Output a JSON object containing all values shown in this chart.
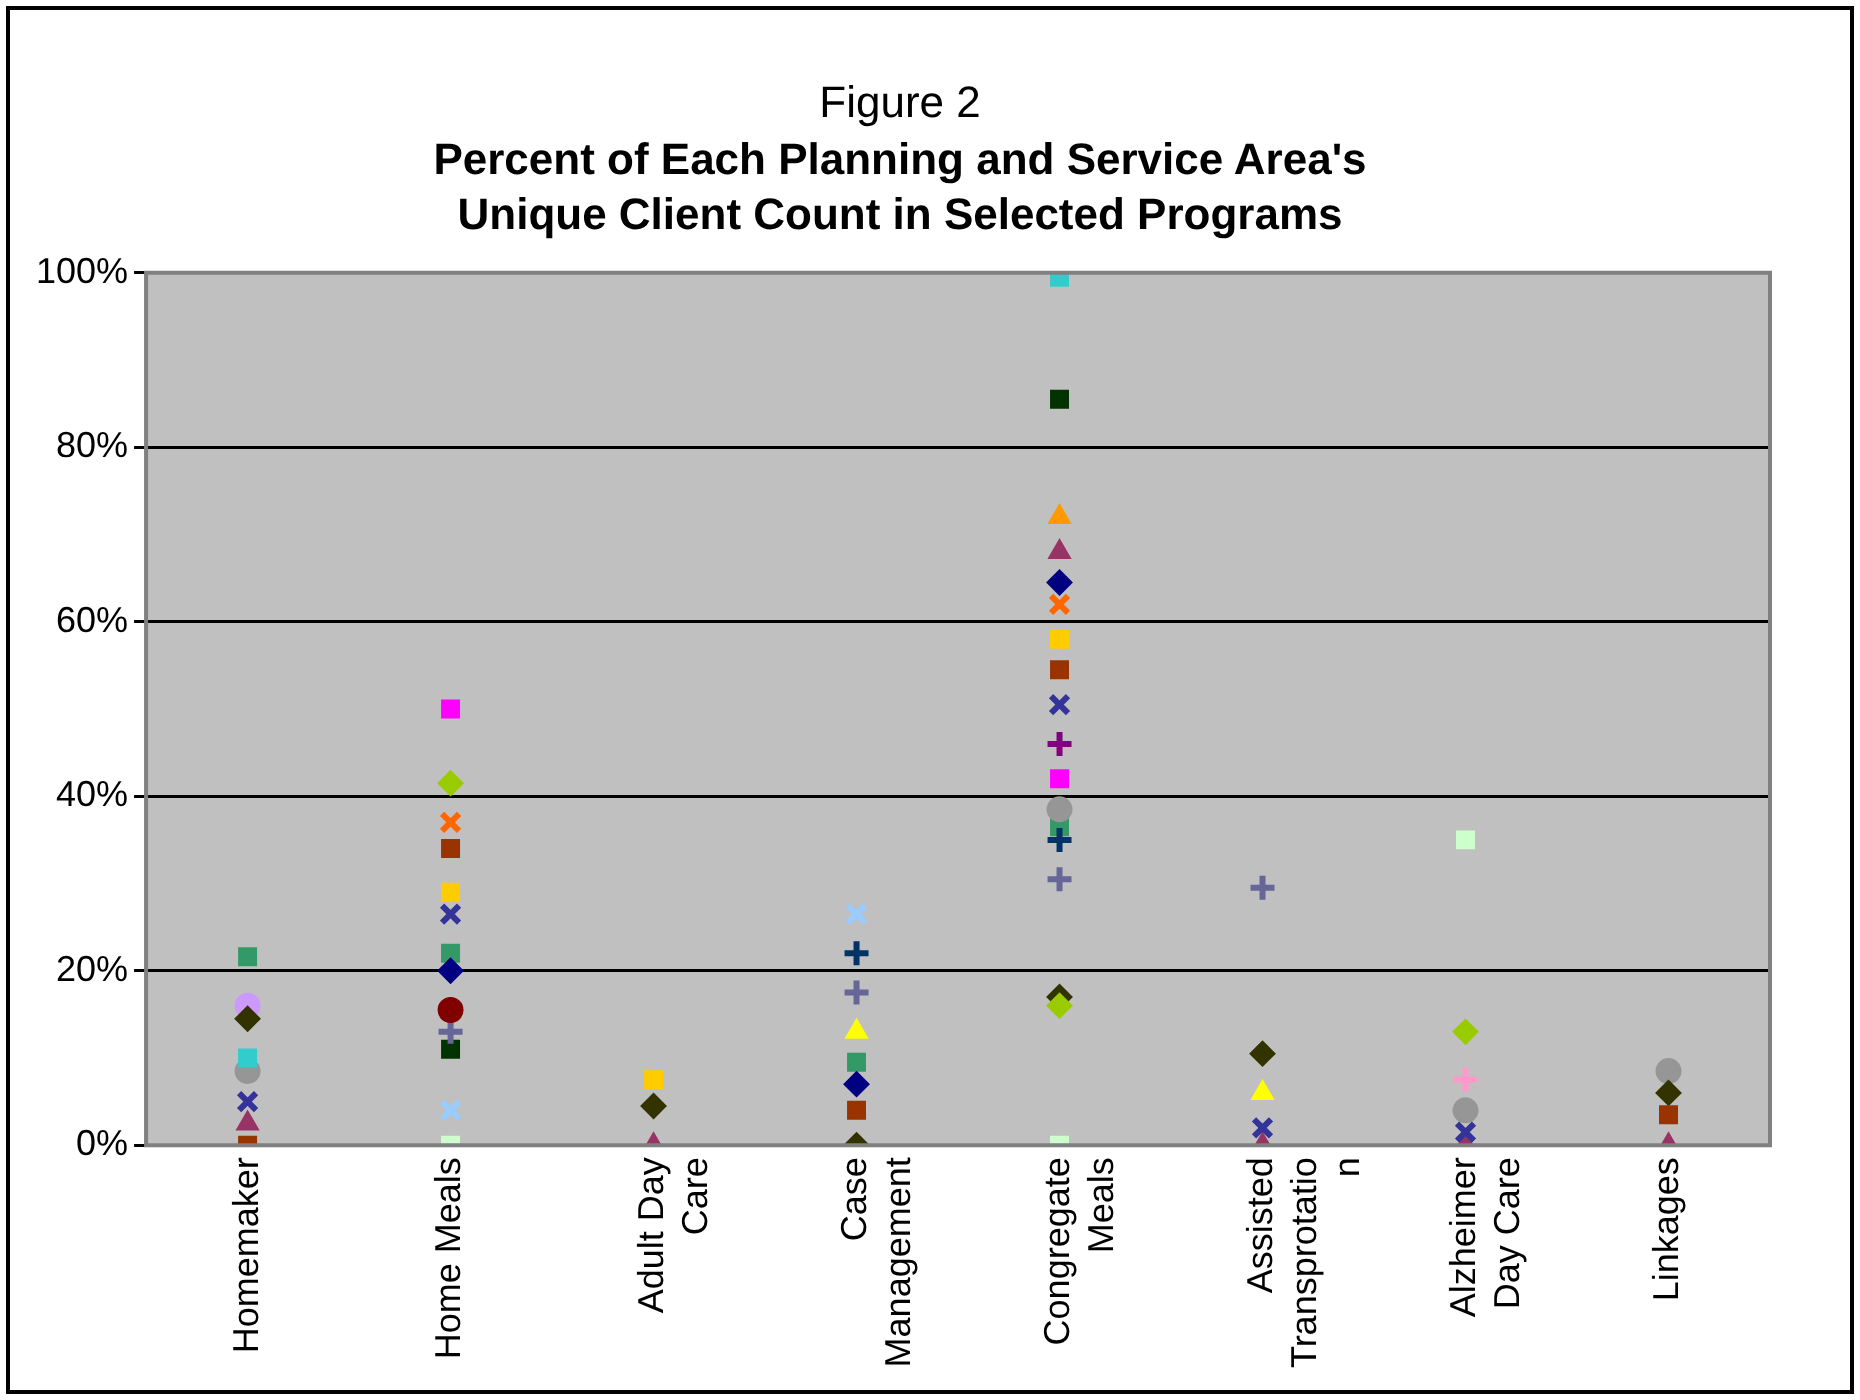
{
  "chart_data": {
    "type": "scatter",
    "title": "Figure 2",
    "subtitle": "Percent of Each Planning and Service Area's Unique Client Count in Selected Programs",
    "categories": [
      "Homemaker",
      "Home Meals",
      "Adult Day Care",
      "Case Management",
      "Congregate Meals",
      "Assisted Transprotation",
      "Alzheimer Day Care",
      "Linkages"
    ],
    "ylim": [
      0,
      100
    ],
    "yticks": [
      {
        "value": 0,
        "label": "0%"
      },
      {
        "value": 20,
        "label": "20%"
      },
      {
        "value": 40,
        "label": "40%"
      },
      {
        "value": 60,
        "label": "60%"
      },
      {
        "value": 80,
        "label": "80%"
      },
      {
        "value": 100,
        "label": "100%"
      }
    ],
    "grid": "y",
    "legend": false,
    "series": [
      {
        "color": "#000080",
        "marker": "diamond",
        "values": [
          null,
          20,
          null,
          7,
          64.5,
          null,
          null,
          null
        ]
      },
      {
        "color": "#ff00ff",
        "marker": "square",
        "values": [
          null,
          50,
          null,
          null,
          42,
          null,
          null,
          null
        ]
      },
      {
        "color": "#ffff00",
        "marker": "triangle",
        "values": [
          null,
          null,
          null,
          13,
          null,
          6,
          null,
          null
        ]
      },
      {
        "color": "#33cccc",
        "marker": "square",
        "values": [
          10,
          null,
          null,
          null,
          99.5,
          null,
          null,
          null
        ]
      },
      {
        "color": "#800080",
        "marker": "cross",
        "values": [
          null,
          null,
          null,
          null,
          46,
          null,
          null,
          null
        ]
      },
      {
        "color": "#800000",
        "marker": "circle",
        "values": [
          null,
          15.5,
          null,
          null,
          null,
          null,
          null,
          null
        ]
      },
      {
        "color": "#333399",
        "marker": "x",
        "values": [
          5,
          26.5,
          null,
          null,
          50.5,
          2,
          1.5,
          null
        ]
      },
      {
        "color": "#ff6600",
        "marker": "x",
        "values": [
          null,
          37,
          null,
          null,
          62,
          null,
          null,
          null
        ]
      },
      {
        "color": "#993300",
        "marker": "square",
        "values": [
          0,
          34,
          null,
          4,
          54.5,
          null,
          null,
          3.5
        ]
      },
      {
        "color": "#ffcc00",
        "marker": "square",
        "values": [
          null,
          29,
          7.5,
          null,
          58,
          null,
          null,
          null
        ]
      },
      {
        "color": "#993366",
        "marker": "triangle",
        "values": [
          2.5,
          null,
          0,
          null,
          68,
          0,
          0,
          0
        ]
      },
      {
        "color": "#99cc00",
        "marker": "diamond",
        "values": [
          null,
          41.5,
          null,
          null,
          16,
          null,
          13,
          null
        ]
      },
      {
        "color": "#333300",
        "marker": "diamond",
        "values": [
          14.5,
          null,
          4.5,
          0,
          17,
          10.5,
          null,
          6
        ]
      },
      {
        "color": "#969696",
        "marker": "circle",
        "values": [
          8.5,
          null,
          null,
          null,
          38.5,
          null,
          4,
          8.5
        ]
      },
      {
        "color": "#666699",
        "marker": "cross",
        "values": [
          null,
          13,
          null,
          17.5,
          30.5,
          29.5,
          null,
          null
        ]
      },
      {
        "color": "#99ccff",
        "marker": "x",
        "values": [
          null,
          4,
          null,
          26.5,
          null,
          null,
          null,
          null
        ]
      },
      {
        "color": "#003366",
        "marker": "cross",
        "values": [
          null,
          null,
          null,
          22,
          35,
          null,
          null,
          null
        ]
      },
      {
        "color": "#339966",
        "marker": "square",
        "values": [
          21.6,
          22,
          null,
          9.5,
          36.5,
          null,
          null,
          null
        ]
      },
      {
        "color": "#003300",
        "marker": "square",
        "values": [
          null,
          11,
          null,
          null,
          85.5,
          null,
          null,
          null
        ]
      },
      {
        "color": "#ccffcc",
        "marker": "square",
        "values": [
          null,
          0,
          null,
          null,
          0,
          null,
          35,
          null
        ]
      },
      {
        "color": "#cc99ff",
        "marker": "circle",
        "values": [
          16,
          null,
          null,
          null,
          null,
          null,
          null,
          null
        ]
      },
      {
        "color": "#ff9900",
        "marker": "triangle",
        "values": [
          null,
          null,
          null,
          null,
          72,
          null,
          null,
          null
        ]
      },
      {
        "color": "#ff99cc",
        "marker": "cross",
        "values": [
          null,
          null,
          null,
          null,
          null,
          null,
          7.5,
          null
        ]
      }
    ]
  }
}
